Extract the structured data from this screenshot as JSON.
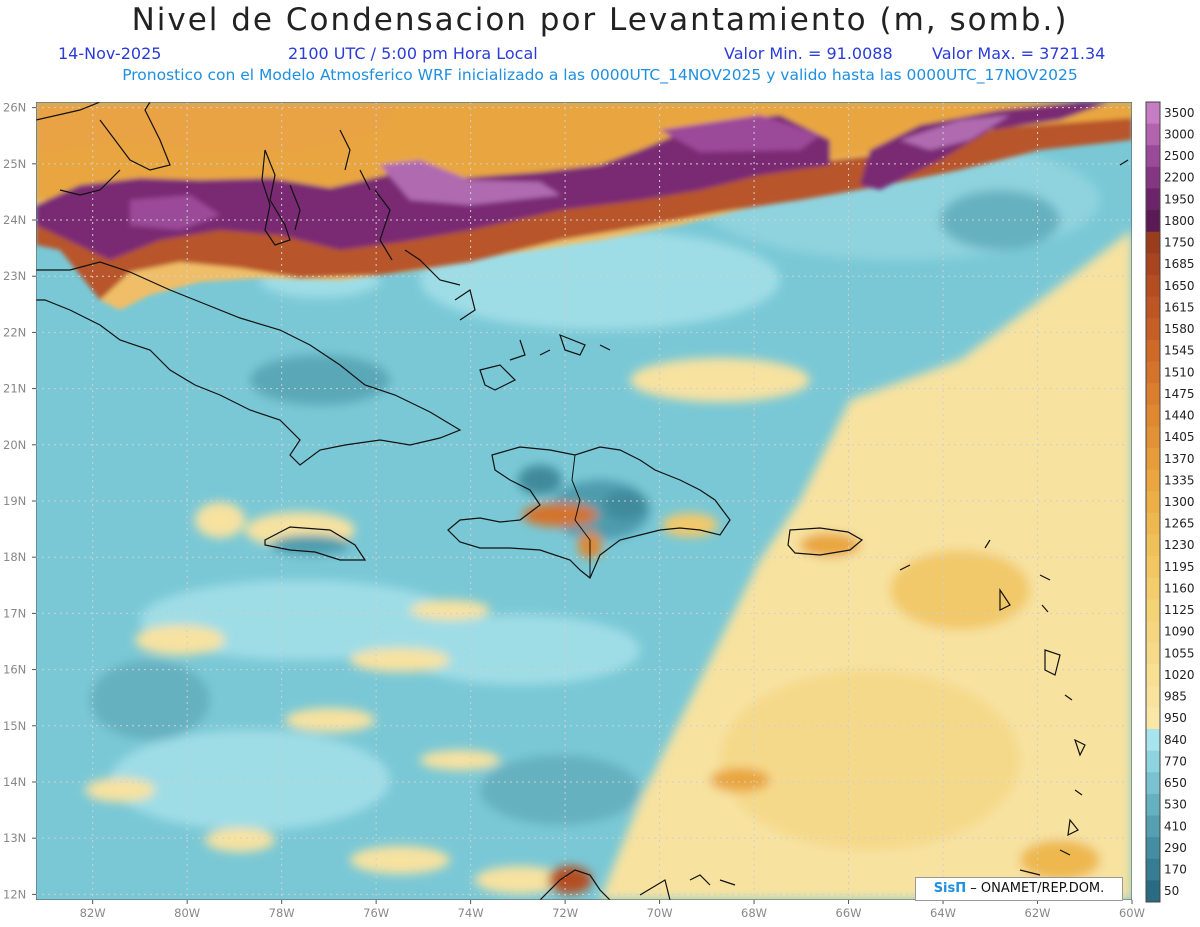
{
  "title": "Nivel de Condensacion por Levantamiento (m, somb.)",
  "date": "14-Nov-2025",
  "time": "2100 UTC / 5:00 pm Hora Local",
  "valor_min": "Valor Min. = 91.0088",
  "valor_max": "Valor Max. = 3721.34",
  "model_info": "Pronostico con el Modelo Atmosferico WRF inicializado a las 0000UTC_14NOV2025 y valido hasta las  0000UTC_17NOV2025",
  "credit": {
    "brand": "SisΠ",
    "text": "– ONAMET/REP.DOM."
  },
  "map_extent": {
    "lon_min": -83.2,
    "lon_max": -60,
    "lat_min": 11.9,
    "lat_max": 26.1
  },
  "lon_ticks": [
    "82W",
    "80W",
    "78W",
    "76W",
    "74W",
    "72W",
    "70W",
    "68W",
    "66W",
    "64W",
    "62W",
    "60W"
  ],
  "lat_ticks": [
    "26N",
    "25N",
    "24N",
    "23N",
    "22N",
    "21N",
    "20N",
    "19N",
    "18N",
    "17N",
    "16N",
    "15N",
    "14N",
    "13N",
    "12N"
  ],
  "colorbar": {
    "labels": [
      "3500",
      "3000",
      "2500",
      "2200",
      "1950",
      "1800",
      "1750",
      "1685",
      "1650",
      "1615",
      "1580",
      "1545",
      "1510",
      "1475",
      "1440",
      "1405",
      "1370",
      "1335",
      "1300",
      "1265",
      "1230",
      "1195",
      "1160",
      "1125",
      "1090",
      "1055",
      "1020",
      "985",
      "950",
      "840",
      "770",
      "650",
      "530",
      "410",
      "290",
      "170",
      "50"
    ],
    "colors": [
      "#c77dc3",
      "#b363ae",
      "#9b4a99",
      "#833682",
      "#6b2468",
      "#5a1a54",
      "#9a3c1e",
      "#a84420",
      "#b44d22",
      "#bd5624",
      "#c65f26",
      "#ce6928",
      "#d4732b",
      "#d97d2e",
      "#de8832",
      "#e29236",
      "#e69c3b",
      "#e9a641",
      "#ecaf48",
      "#eeb850",
      "#f0c05a",
      "#f2c763",
      "#f3cd6c",
      "#f4d276",
      "#f5d680",
      "#f6da8a",
      "#f7df94",
      "#f8e39e",
      "#f9e7a8",
      "#a8e4ec",
      "#8fd3de",
      "#7ac2cf",
      "#66b1c0",
      "#559fb0",
      "#458ea1",
      "#377d92",
      "#2a6b82"
    ]
  }
}
